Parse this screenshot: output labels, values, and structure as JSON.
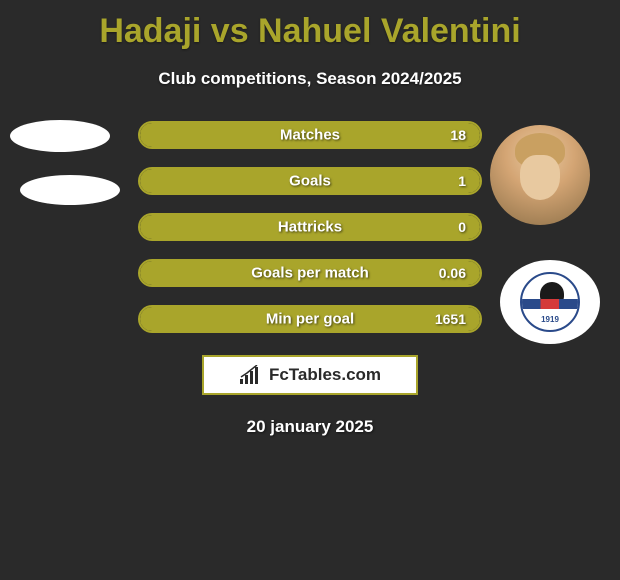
{
  "title": "Hadaji vs Nahuel Valentini",
  "subtitle": "Club competitions, Season 2024/2025",
  "colors": {
    "background": "#2a2a2a",
    "accent": "#a9a52b",
    "text": "#ffffff"
  },
  "stats": [
    {
      "label": "Matches",
      "value_right": "18",
      "fill_pct": 100
    },
    {
      "label": "Goals",
      "value_right": "1",
      "fill_pct": 100
    },
    {
      "label": "Hattricks",
      "value_right": "0",
      "fill_pct": 100
    },
    {
      "label": "Goals per match",
      "value_right": "0.06",
      "fill_pct": 100
    },
    {
      "label": "Min per goal",
      "value_right": "1651",
      "fill_pct": 100
    }
  ],
  "club_badge": {
    "year": "1919"
  },
  "logo": {
    "text": "FcTables.com"
  },
  "date": "20 january 2025"
}
